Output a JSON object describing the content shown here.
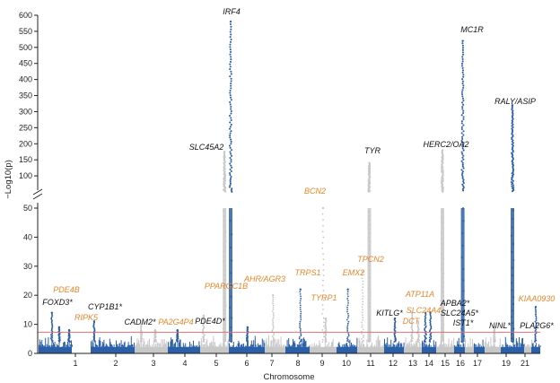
{
  "chart_data": {
    "type": "scatter",
    "subtype": "manhattan",
    "title": "",
    "xlabel": "Chromosome",
    "ylabel": "−Log10(p)",
    "yaxis_upper": {
      "range": [
        50,
        600
      ],
      "ticks": [
        50,
        100,
        150,
        200,
        250,
        300,
        350,
        400,
        450,
        500,
        550,
        600
      ]
    },
    "yaxis_lower": {
      "range": [
        0,
        50
      ],
      "ticks": [
        0,
        10,
        20,
        30,
        40,
        50
      ]
    },
    "axis_break": true,
    "significance_line": {
      "value": 7.3,
      "color": "#e07070"
    },
    "colors": {
      "odd_chromosome": "#2b5fa8",
      "even_chromosome": "#c8c8c8",
      "black_label": "#111111",
      "orange_label": "#e8862a"
    },
    "chromosome_ticks": [
      "1",
      "2",
      "3",
      "4",
      "5",
      "6",
      "7",
      "8",
      "9",
      "10",
      "11",
      "12",
      "13",
      "14",
      "15",
      "16",
      "17",
      "19",
      "21"
    ],
    "chromosomes": [
      {
        "chr": "1",
        "color": "blue"
      },
      {
        "chr": "2",
        "color": "blue"
      },
      {
        "chr": "3",
        "color": "grey"
      },
      {
        "chr": "4",
        "color": "blue"
      },
      {
        "chr": "5",
        "color": "grey"
      },
      {
        "chr": "6",
        "color": "blue"
      },
      {
        "chr": "7",
        "color": "grey"
      },
      {
        "chr": "8",
        "color": "blue"
      },
      {
        "chr": "9",
        "color": "grey"
      },
      {
        "chr": "10",
        "color": "blue"
      },
      {
        "chr": "11",
        "color": "grey"
      },
      {
        "chr": "12",
        "color": "blue"
      },
      {
        "chr": "13",
        "color": "grey"
      },
      {
        "chr": "14",
        "color": "blue"
      },
      {
        "chr": "15",
        "color": "grey"
      },
      {
        "chr": "16",
        "color": "blue"
      },
      {
        "chr": "17",
        "color": "grey"
      },
      {
        "chr": "18",
        "color": "blue"
      },
      {
        "chr": "19",
        "color": "grey"
      },
      {
        "chr": "20",
        "color": "blue"
      },
      {
        "chr": "21",
        "color": "grey"
      },
      {
        "chr": "22",
        "color": "blue"
      }
    ],
    "peaks": [
      {
        "chr": "1",
        "pos": 0.4,
        "y": 14
      },
      {
        "chr": "1",
        "pos": 0.62,
        "y": 9
      },
      {
        "chr": "1",
        "pos": 0.92,
        "y": 8
      },
      {
        "chr": "2",
        "pos": 0.08,
        "y": 11
      },
      {
        "chr": "3",
        "pos": 0.2,
        "y": 10
      },
      {
        "chr": "3",
        "pos": 0.62,
        "y": 8
      },
      {
        "chr": "4",
        "pos": 0.3,
        "y": 8
      },
      {
        "chr": "5",
        "pos": 0.12,
        "y": 13
      },
      {
        "chr": "5",
        "pos": 0.85,
        "y": 175
      },
      {
        "chr": "6",
        "pos": 0.05,
        "y": 580
      },
      {
        "chr": "6",
        "pos": 0.52,
        "y": 9
      },
      {
        "chr": "7",
        "pos": 0.4,
        "y": 20
      },
      {
        "chr": "8",
        "pos": 0.62,
        "y": 22
      },
      {
        "chr": "9",
        "pos": 0.5,
        "y": 50
      },
      {
        "chr": "9",
        "pos": 0.6,
        "y": 12
      },
      {
        "chr": "10",
        "pos": 0.55,
        "y": 22
      },
      {
        "chr": "11",
        "pos": 0.2,
        "y": 28
      },
      {
        "chr": "11",
        "pos": 0.45,
        "y": 140
      },
      {
        "chr": "12",
        "pos": 0.55,
        "y": 12
      },
      {
        "chr": "13",
        "pos": 0.45,
        "y": 14
      },
      {
        "chr": "13",
        "pos": 0.8,
        "y": 11
      },
      {
        "chr": "14",
        "pos": 0.25,
        "y": 14
      },
      {
        "chr": "14",
        "pos": 0.6,
        "y": 14
      },
      {
        "chr": "15",
        "pos": 0.35,
        "y": 180
      },
      {
        "chr": "16",
        "pos": 0.8,
        "y": 520
      },
      {
        "chr": "19",
        "pos": 0.6,
        "y": 9
      },
      {
        "chr": "20",
        "pos": 0.5,
        "y": 320
      },
      {
        "chr": "22",
        "pos": 0.5,
        "y": 16
      }
    ],
    "annotations": [
      {
        "text": "IRF4",
        "color": "black"
      },
      {
        "text": "MC1R",
        "color": "black"
      },
      {
        "text": "RALY/ASIP",
        "color": "black"
      },
      {
        "text": "SLC45A2",
        "color": "black"
      },
      {
        "text": "HERC2/OA2",
        "color": "black"
      },
      {
        "text": "TYR",
        "color": "black"
      },
      {
        "text": "BCN2",
        "color": "orange"
      },
      {
        "text": "TPCN2",
        "color": "orange"
      },
      {
        "text": "AHR/AGR3",
        "color": "orange"
      },
      {
        "text": "TRPS1",
        "color": "orange"
      },
      {
        "text": "EMX2",
        "color": "orange"
      },
      {
        "text": "TYRP1",
        "color": "orange"
      },
      {
        "text": "PPARGC1B",
        "color": "orange"
      },
      {
        "text": "PDE4B",
        "color": "orange"
      },
      {
        "text": "FOXD3*",
        "color": "black"
      },
      {
        "text": "CYP1B1*",
        "color": "black"
      },
      {
        "text": "RIPK5",
        "color": "orange"
      },
      {
        "text": "CADM2*",
        "color": "black"
      },
      {
        "text": "PA2G4P4",
        "color": "orange"
      },
      {
        "text": "PDE4D*",
        "color": "black"
      },
      {
        "text": "ATP11A",
        "color": "orange"
      },
      {
        "text": "SLC24A4",
        "color": "orange"
      },
      {
        "text": "DCT",
        "color": "orange"
      },
      {
        "text": "KITLG*",
        "color": "black"
      },
      {
        "text": "APBA2*",
        "color": "black"
      },
      {
        "text": "SLC24A5*",
        "color": "black"
      },
      {
        "text": "IST1*",
        "color": "black"
      },
      {
        "text": "NINL*",
        "color": "black"
      },
      {
        "text": "KIAA0930",
        "color": "orange"
      },
      {
        "text": "PLA2G6*",
        "color": "black"
      }
    ]
  }
}
